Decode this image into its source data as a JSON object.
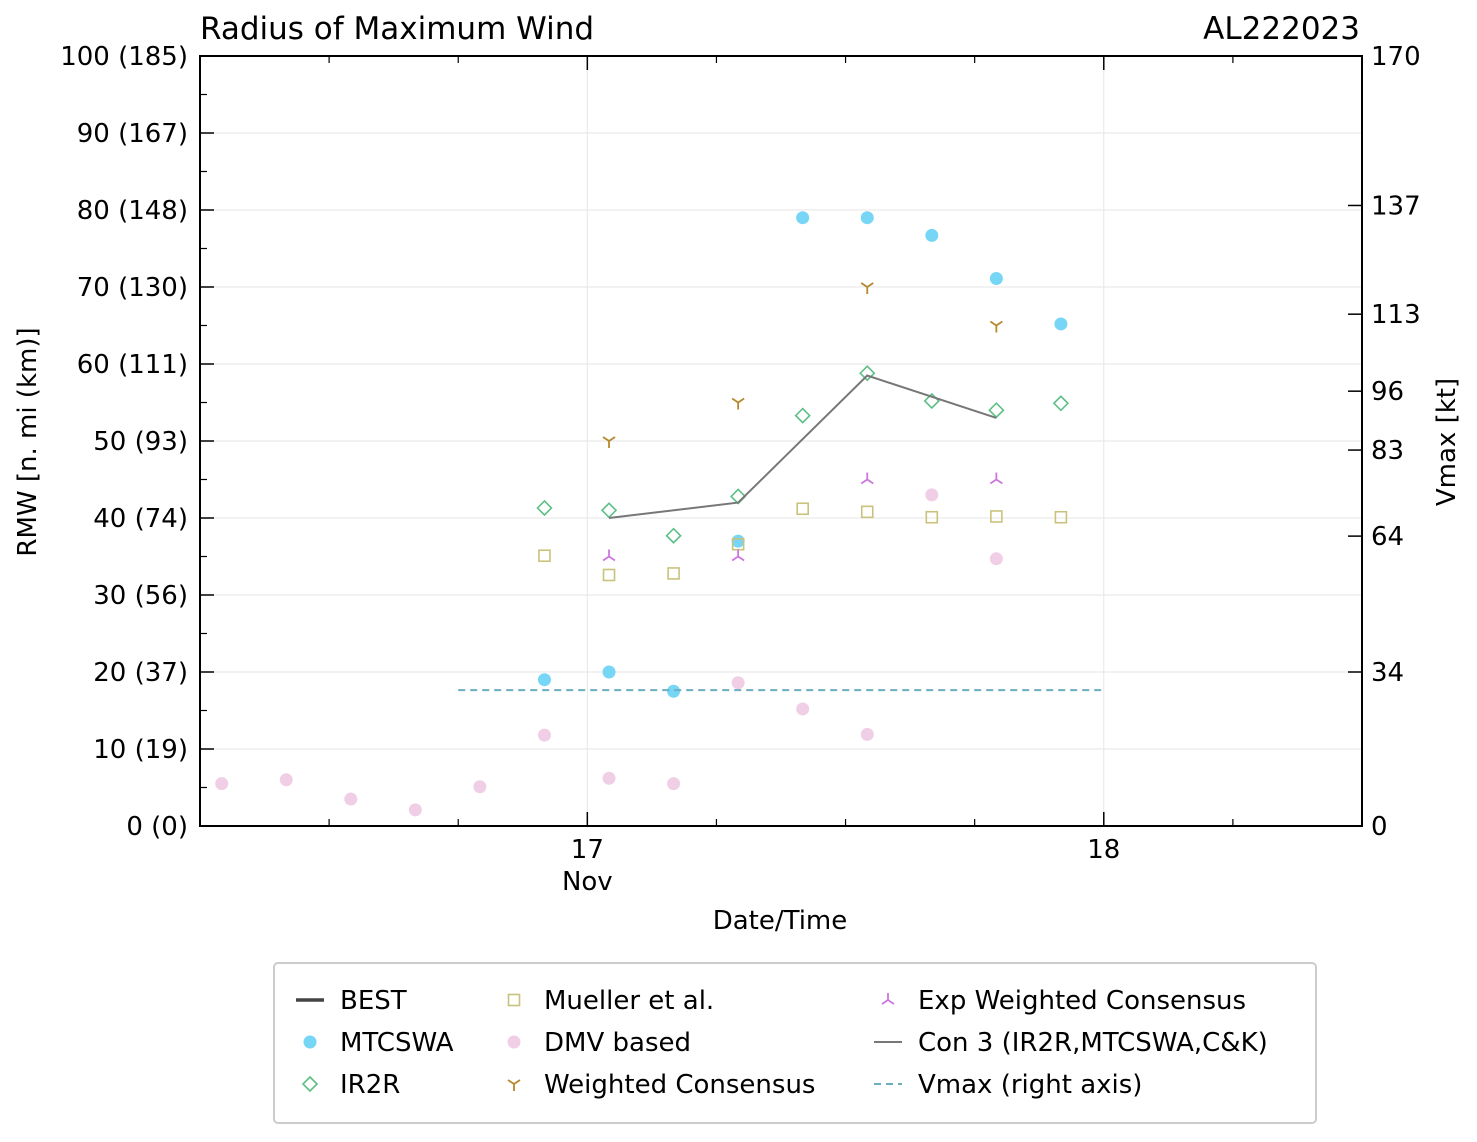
{
  "chart_data": {
    "type": "scatter",
    "title": "Radius of Maximum Wind",
    "storm_id": "AL222023",
    "xlabel": "Date/Time",
    "ylabel": "RMW [n. mi (km)]",
    "y2label": "Vmax [kt]",
    "x_range": [
      16.25,
      18.5
    ],
    "ylim": [
      0,
      100
    ],
    "y2lim": [
      0,
      170
    ],
    "x_ticks": [
      {
        "value": 17.0,
        "label": "17"
      },
      {
        "value": 18.0,
        "label": "18"
      }
    ],
    "x_minor_ticks": [
      16.5,
      16.75,
      17.25,
      17.5,
      17.75,
      18.25
    ],
    "x_sublabel": {
      "value": 17.0,
      "label": "Nov"
    },
    "y_ticks": [
      {
        "value": 0,
        "label": "0 (0)"
      },
      {
        "value": 10,
        "label": "10 (19)"
      },
      {
        "value": 20,
        "label": "20 (37)"
      },
      {
        "value": 30,
        "label": "30 (56)"
      },
      {
        "value": 40,
        "label": "40 (74)"
      },
      {
        "value": 50,
        "label": "50 (93)"
      },
      {
        "value": 60,
        "label": "60 (111)"
      },
      {
        "value": 70,
        "label": "70 (130)"
      },
      {
        "value": 80,
        "label": "80 (148)"
      },
      {
        "value": 90,
        "label": "90 (167)"
      },
      {
        "value": 100,
        "label": "100 (185)"
      }
    ],
    "y2_ticks": [
      {
        "value": 0,
        "label": "0"
      },
      {
        "value": 34,
        "label": "34"
      },
      {
        "value": 64,
        "label": "64"
      },
      {
        "value": 83,
        "label": "83"
      },
      {
        "value": 96,
        "label": "96"
      },
      {
        "value": 113,
        "label": "113"
      },
      {
        "value": 137,
        "label": "137"
      },
      {
        "value": 170,
        "label": "170"
      }
    ],
    "series": [
      {
        "name": "BEST",
        "marker": "line-thick",
        "color": "#444444",
        "points": []
      },
      {
        "name": "MTCSWA",
        "marker": "circle",
        "color": "#77d5f5",
        "points": [
          {
            "x": 16.917,
            "y": 19.0
          },
          {
            "x": 17.042,
            "y": 20.0
          },
          {
            "x": 17.167,
            "y": 17.5
          },
          {
            "x": 17.292,
            "y": 37.0
          },
          {
            "x": 17.417,
            "y": 79.0
          },
          {
            "x": 17.542,
            "y": 79.0
          },
          {
            "x": 17.667,
            "y": 76.7
          },
          {
            "x": 17.792,
            "y": 71.1
          },
          {
            "x": 17.917,
            "y": 65.2
          }
        ]
      },
      {
        "name": "IR2R",
        "marker": "diamond",
        "color": "#5cbf85",
        "points": [
          {
            "x": 16.917,
            "y": 41.3
          },
          {
            "x": 17.042,
            "y": 41.0
          },
          {
            "x": 17.167,
            "y": 37.7
          },
          {
            "x": 17.292,
            "y": 42.8
          },
          {
            "x": 17.417,
            "y": 53.3
          },
          {
            "x": 17.542,
            "y": 58.8
          },
          {
            "x": 17.667,
            "y": 55.2
          },
          {
            "x": 17.792,
            "y": 54.0
          },
          {
            "x": 17.917,
            "y": 54.9
          }
        ]
      },
      {
        "name": "Mueller et al.",
        "marker": "square",
        "color": "#c9c27d",
        "points": [
          {
            "x": 16.917,
            "y": 35.1
          },
          {
            "x": 17.042,
            "y": 32.6
          },
          {
            "x": 17.167,
            "y": 32.8
          },
          {
            "x": 17.292,
            "y": 36.6
          },
          {
            "x": 17.417,
            "y": 41.2
          },
          {
            "x": 17.542,
            "y": 40.8
          },
          {
            "x": 17.667,
            "y": 40.1
          },
          {
            "x": 17.792,
            "y": 40.2
          },
          {
            "x": 17.917,
            "y": 40.1
          }
        ]
      },
      {
        "name": "DMV based",
        "marker": "circle",
        "color": "#f0cfe6",
        "points": [
          {
            "x": 16.292,
            "y": 5.5
          },
          {
            "x": 16.417,
            "y": 6.0
          },
          {
            "x": 16.542,
            "y": 3.5
          },
          {
            "x": 16.667,
            "y": 2.1
          },
          {
            "x": 16.792,
            "y": 5.1
          },
          {
            "x": 16.917,
            "y": 11.8
          },
          {
            "x": 17.042,
            "y": 6.2
          },
          {
            "x": 17.167,
            "y": 5.5
          },
          {
            "x": 17.292,
            "y": 18.6
          },
          {
            "x": 17.417,
            "y": 15.2
          },
          {
            "x": 17.542,
            "y": 11.9
          },
          {
            "x": 17.667,
            "y": 43.0
          },
          {
            "x": 17.792,
            "y": 34.7
          }
        ]
      },
      {
        "name": "Weighted Consensus",
        "marker": "tri-down",
        "color": "#b5892c",
        "points": [
          {
            "x": 17.042,
            "y": 50.0
          },
          {
            "x": 17.292,
            "y": 55.0
          },
          {
            "x": 17.542,
            "y": 70.0
          },
          {
            "x": 17.792,
            "y": 65.0
          }
        ]
      },
      {
        "name": "Exp Weighted Consensus",
        "marker": "tri-up",
        "color": "#cc77dd",
        "points": [
          {
            "x": 17.042,
            "y": 35.0
          },
          {
            "x": 17.292,
            "y": 35.0
          },
          {
            "x": 17.542,
            "y": 45.0
          },
          {
            "x": 17.792,
            "y": 45.0
          }
        ]
      },
      {
        "name": "Con 3 (IR2R,MTCSWA,C&K)",
        "marker": "line",
        "color": "#777777",
        "points": [
          {
            "x": 17.042,
            "y": 40.0
          },
          {
            "x": 17.292,
            "y": 42.0
          },
          {
            "x": 17.542,
            "y": 58.5
          },
          {
            "x": 17.792,
            "y": 53.0
          }
        ]
      },
      {
        "name": "Vmax (right axis)",
        "marker": "dashed",
        "color": "#6aaec0",
        "axis": "right",
        "points": [
          {
            "x": 16.75,
            "y": 30
          },
          {
            "x": 18.0,
            "y": 30
          }
        ]
      }
    ]
  }
}
